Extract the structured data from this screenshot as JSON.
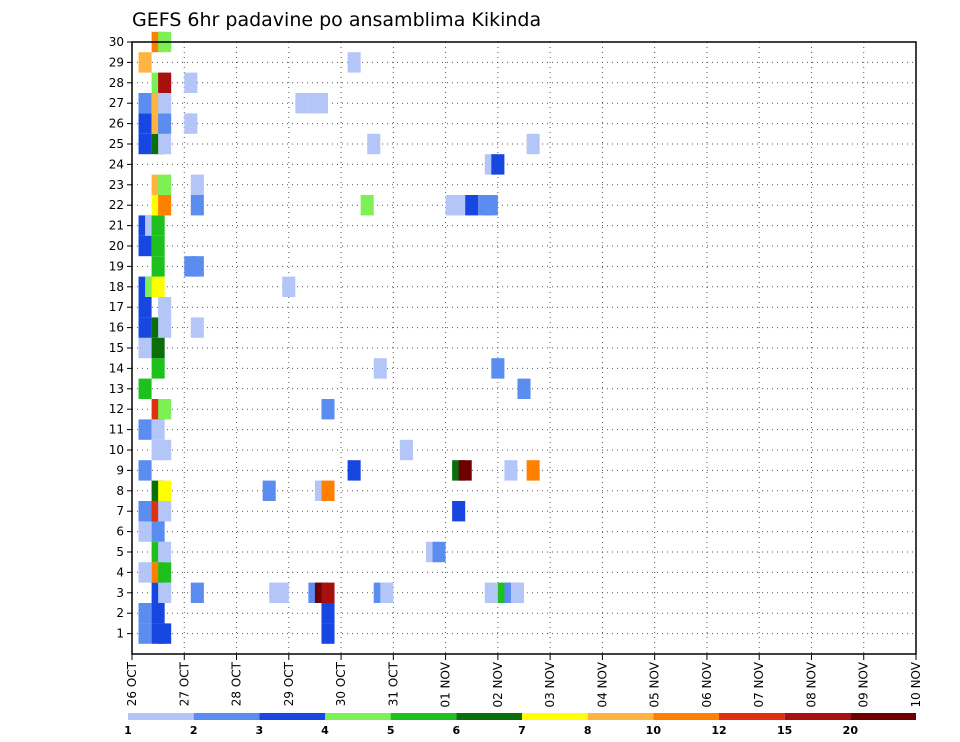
{
  "chart_data": {
    "type": "heatmap",
    "title": "GEFS 6hr padavine po ansamblima Kikinda",
    "xlabel": "",
    "ylabel": "",
    "y_ticks": [
      "1",
      "2",
      "3",
      "4",
      "5",
      "6",
      "7",
      "8",
      "9",
      "10",
      "11",
      "12",
      "13",
      "14",
      "15",
      "16",
      "17",
      "18",
      "19",
      "20",
      "21",
      "22",
      "23",
      "24",
      "25",
      "26",
      "27",
      "28",
      "29",
      "30"
    ],
    "x_ticks": [
      "26 OCT",
      "27 OCT",
      "28 OCT",
      "29 OCT",
      "30 OCT",
      "31 OCT",
      "01 NOV",
      "02 NOV",
      "03 NOV",
      "04 NOV",
      "05 NOV",
      "06 NOV",
      "07 NOV",
      "08 NOV",
      "09 NOV",
      "10 NOV"
    ],
    "x_unit": "6-hour steps from 26 OCT 00z",
    "x_range": [
      0,
      60
    ],
    "y_range": [
      0,
      30
    ],
    "colorbar": {
      "labels": [
        "1",
        "2",
        "3",
        "4",
        "5",
        "6",
        "7",
        "8",
        "10",
        "12",
        "15",
        "20"
      ],
      "colors": [
        "#b3c6f7",
        "#5b8cf0",
        "#1846e0",
        "#7df055",
        "#1ec01e",
        "#0a6e0a",
        "#ffff00",
        "#ffb340",
        "#ff7f00",
        "#e03010",
        "#a81010",
        "#6e0000"
      ]
    },
    "cells": [
      {
        "t": 0.5,
        "m": 1,
        "v": 2
      },
      {
        "t": 0.5,
        "m": 2,
        "v": 2
      },
      {
        "t": 0.5,
        "m": 4,
        "v": 1
      },
      {
        "t": 0.5,
        "m": 6,
        "v": 1
      },
      {
        "t": 0.5,
        "m": 7,
        "v": 2
      },
      {
        "t": 0.5,
        "m": 9,
        "v": 2
      },
      {
        "t": 0.5,
        "m": 11,
        "v": 2
      },
      {
        "t": 0.5,
        "m": 13,
        "v": 5
      },
      {
        "t": 0.5,
        "m": 15,
        "v": 1
      },
      {
        "t": 0.5,
        "m": 16,
        "v": 3
      },
      {
        "t": 0.5,
        "m": 17,
        "v": 3
      },
      {
        "t": 0.5,
        "m": 18,
        "v": 3
      },
      {
        "t": 0.5,
        "m": 20,
        "v": 3
      },
      {
        "t": 0.5,
        "m": 21,
        "v": 3
      },
      {
        "t": 0.5,
        "m": 25,
        "v": 3
      },
      {
        "t": 0.5,
        "m": 26,
        "v": 3
      },
      {
        "t": 0.5,
        "m": 27,
        "v": 2
      },
      {
        "t": 0.5,
        "m": 29,
        "v": 8
      },
      {
        "t": 1,
        "m": 7,
        "v": 2
      },
      {
        "t": 1,
        "m": 18,
        "v": 4
      },
      {
        "t": 1,
        "m": 21,
        "v": 1
      },
      {
        "t": 1.5,
        "m": 1,
        "v": 3
      },
      {
        "t": 1.5,
        "m": 2,
        "v": 3
      },
      {
        "t": 1.5,
        "m": 3,
        "v": 3
      },
      {
        "t": 1.5,
        "m": 4,
        "v": 10
      },
      {
        "t": 1.5,
        "m": 5,
        "v": 5
      },
      {
        "t": 1.5,
        "m": 6,
        "v": 2
      },
      {
        "t": 1.5,
        "m": 7,
        "v": 12
      },
      {
        "t": 1.5,
        "m": 8,
        "v": 6
      },
      {
        "t": 1.5,
        "m": 10,
        "v": 1
      },
      {
        "t": 1.5,
        "m": 11,
        "v": 1
      },
      {
        "t": 1.5,
        "m": 12,
        "v": 12
      },
      {
        "t": 1.5,
        "m": 14,
        "v": 5
      },
      {
        "t": 1.5,
        "m": 15,
        "v": 6
      },
      {
        "t": 1.5,
        "m": 16,
        "v": 6
      },
      {
        "t": 1.5,
        "m": 18,
        "v": 7
      },
      {
        "t": 1.5,
        "m": 19,
        "v": 5
      },
      {
        "t": 1.5,
        "m": 20,
        "v": 5
      },
      {
        "t": 1.5,
        "m": 21,
        "v": 5
      },
      {
        "t": 1.5,
        "m": 22,
        "v": 7
      },
      {
        "t": 1.5,
        "m": 23,
        "v": 8
      },
      {
        "t": 1.5,
        "m": 25,
        "v": 6
      },
      {
        "t": 1.5,
        "m": 26,
        "v": 8
      },
      {
        "t": 1.5,
        "m": 27,
        "v": 8
      },
      {
        "t": 1.5,
        "m": 28,
        "v": 4
      },
      {
        "t": 1.5,
        "m": 30,
        "v": 10
      },
      {
        "t": 2,
        "m": 1,
        "v": 3
      },
      {
        "t": 2,
        "m": 3,
        "v": 1
      },
      {
        "t": 2,
        "m": 4,
        "v": 5
      },
      {
        "t": 2,
        "m": 5,
        "v": 1
      },
      {
        "t": 2,
        "m": 7,
        "v": 1
      },
      {
        "t": 2,
        "m": 8,
        "v": 7
      },
      {
        "t": 2,
        "m": 10,
        "v": 1
      },
      {
        "t": 2,
        "m": 12,
        "v": 4
      },
      {
        "t": 2,
        "m": 16,
        "v": 1
      },
      {
        "t": 2,
        "m": 17,
        "v": 1
      },
      {
        "t": 2,
        "m": 22,
        "v": 10
      },
      {
        "t": 2,
        "m": 23,
        "v": 4
      },
      {
        "t": 2,
        "m": 25,
        "v": 1
      },
      {
        "t": 2,
        "m": 26,
        "v": 2
      },
      {
        "t": 2,
        "m": 27,
        "v": 1
      },
      {
        "t": 2,
        "m": 28,
        "v": 15
      },
      {
        "t": 2,
        "m": 30,
        "v": 4
      },
      {
        "t": 4,
        "m": 19,
        "v": 2
      },
      {
        "t": 4,
        "m": 26,
        "v": 1
      },
      {
        "t": 4,
        "m": 28,
        "v": 1
      },
      {
        "t": 4.5,
        "m": 3,
        "v": 2
      },
      {
        "t": 4.5,
        "m": 16,
        "v": 1
      },
      {
        "t": 4.5,
        "m": 19,
        "v": 2
      },
      {
        "t": 4.5,
        "m": 22,
        "v": 2
      },
      {
        "t": 4.5,
        "m": 23,
        "v": 1
      },
      {
        "t": 10,
        "m": 8,
        "v": 2
      },
      {
        "t": 10.5,
        "m": 3,
        "v": 1
      },
      {
        "t": 11,
        "m": 3,
        "v": 1
      },
      {
        "t": 11.5,
        "m": 18,
        "v": 1
      },
      {
        "t": 12.5,
        "m": 27,
        "v": 1
      },
      {
        "t": 13.5,
        "m": 3,
        "v": 2
      },
      {
        "t": 13.5,
        "m": 27,
        "v": 1
      },
      {
        "t": 14,
        "m": 3,
        "v": 20
      },
      {
        "t": 14,
        "m": 8,
        "v": 1
      },
      {
        "t": 14,
        "m": 27,
        "v": 1
      },
      {
        "t": 14.5,
        "m": 1,
        "v": 3
      },
      {
        "t": 14.5,
        "m": 2,
        "v": 3
      },
      {
        "t": 14.5,
        "m": 3,
        "v": 15
      },
      {
        "t": 14.5,
        "m": 8,
        "v": 10
      },
      {
        "t": 14.5,
        "m": 12,
        "v": 2
      },
      {
        "t": 16.5,
        "m": 29,
        "v": 1
      },
      {
        "t": 16.5,
        "m": 9,
        "v": 3
      },
      {
        "t": 17.5,
        "m": 22,
        "v": 4
      },
      {
        "t": 18,
        "m": 25,
        "v": 1
      },
      {
        "t": 18.5,
        "m": 3,
        "v": 2
      },
      {
        "t": 18.5,
        "m": 14,
        "v": 1
      },
      {
        "t": 19,
        "m": 3,
        "v": 1
      },
      {
        "t": 20.5,
        "m": 10,
        "v": 1
      },
      {
        "t": 22.5,
        "m": 5,
        "v": 1
      },
      {
        "t": 23,
        "m": 5,
        "v": 2
      },
      {
        "t": 24,
        "m": 22,
        "v": 1
      },
      {
        "t": 24.5,
        "m": 7,
        "v": 3
      },
      {
        "t": 24.5,
        "m": 9,
        "v": 6
      },
      {
        "t": 24.5,
        "m": 22,
        "v": 1
      },
      {
        "t": 25,
        "m": 9,
        "v": 20
      },
      {
        "t": 25.5,
        "m": 22,
        "v": 3
      },
      {
        "t": 26.5,
        "m": 22,
        "v": 2
      },
      {
        "t": 27,
        "m": 3,
        "v": 1
      },
      {
        "t": 27,
        "m": 22,
        "v": 2
      },
      {
        "t": 27,
        "m": 24,
        "v": 1
      },
      {
        "t": 27.5,
        "m": 14,
        "v": 2
      },
      {
        "t": 27.5,
        "m": 24,
        "v": 3
      },
      {
        "t": 28,
        "m": 3,
        "v": 5
      },
      {
        "t": 28.5,
        "m": 3,
        "v": 2
      },
      {
        "t": 28.5,
        "m": 9,
        "v": 1
      },
      {
        "t": 29,
        "m": 3,
        "v": 1
      },
      {
        "t": 29.5,
        "m": 13,
        "v": 2
      },
      {
        "t": 30.2,
        "m": 9,
        "v": 10
      },
      {
        "t": 30.2,
        "m": 25,
        "v": 1
      }
    ]
  }
}
